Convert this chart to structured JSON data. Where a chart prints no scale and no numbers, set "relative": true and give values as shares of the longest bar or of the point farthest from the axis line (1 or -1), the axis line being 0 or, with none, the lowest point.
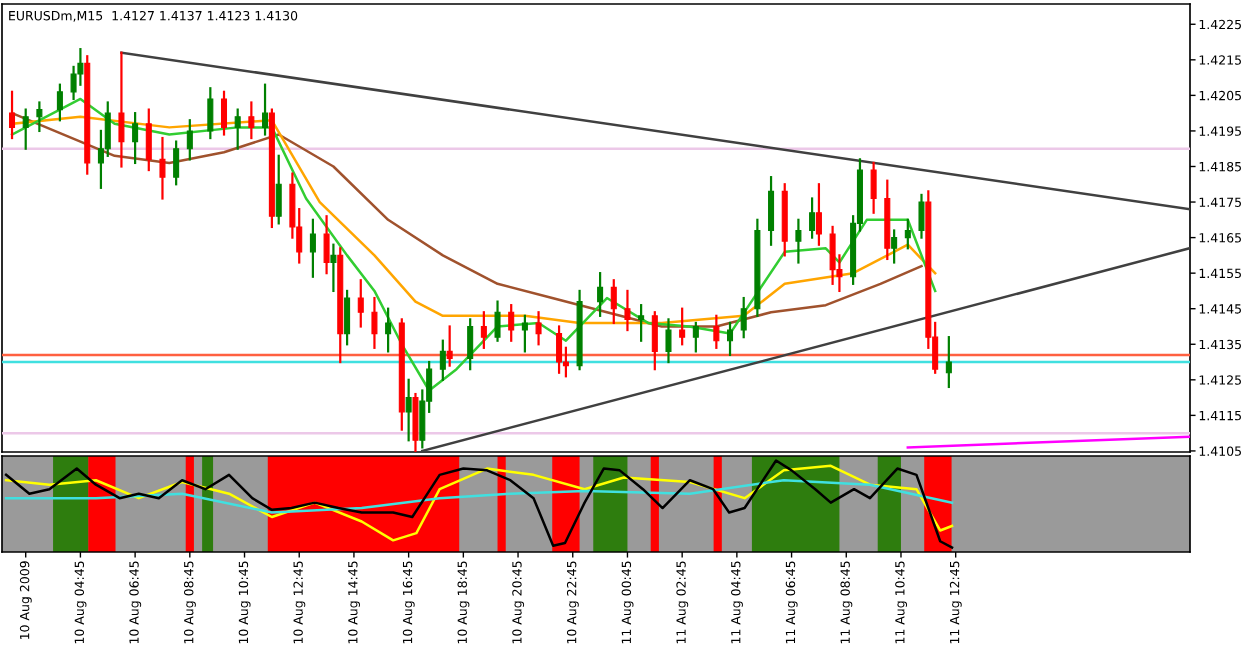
{
  "chart_data": [
    {
      "type": "candlestick",
      "title": "EURUSDm,M15  1.4127 1.4137 1.4123 1.4130",
      "x": [
        "2009-08-10T02:15",
        "2009-08-10T02:45",
        "2009-08-10T03:15",
        "2009-08-10T04:00",
        "2009-08-10T04:30",
        "2009-08-10T04:45",
        "2009-08-10T05:00",
        "2009-08-10T05:30",
        "2009-08-10T05:45",
        "2009-08-10T06:15",
        "2009-08-10T06:45",
        "2009-08-10T07:15",
        "2009-08-10T07:45",
        "2009-08-10T08:15",
        "2009-08-10T08:45",
        "2009-08-10T09:30",
        "2009-08-10T10:00",
        "2009-08-10T10:30",
        "2009-08-10T11:00",
        "2009-08-10T11:30",
        "2009-08-10T11:45",
        "2009-08-10T12:00",
        "2009-08-10T12:30",
        "2009-08-10T12:45",
        "2009-08-10T13:15",
        "2009-08-10T13:45",
        "2009-08-10T14:00",
        "2009-08-10T14:15",
        "2009-08-10T14:30",
        "2009-08-10T15:00",
        "2009-08-10T15:30",
        "2009-08-10T16:00",
        "2009-08-10T16:30",
        "2009-08-10T16:45",
        "2009-08-10T17:00",
        "2009-08-10T17:15",
        "2009-08-10T17:30",
        "2009-08-10T18:00",
        "2009-08-10T18:15",
        "2009-08-10T19:00",
        "2009-08-10T19:30",
        "2009-08-10T20:00",
        "2009-08-10T20:30",
        "2009-08-10T21:00",
        "2009-08-10T21:30",
        "2009-08-10T22:15",
        "2009-08-10T22:30",
        "2009-08-10T23:00",
        "2009-08-10T23:45",
        "2009-08-11T00:15",
        "2009-08-11T00:45",
        "2009-08-11T01:15",
        "2009-08-11T01:45",
        "2009-08-11T02:15",
        "2009-08-11T02:45",
        "2009-08-11T03:15",
        "2009-08-11T04:00",
        "2009-08-11T04:30",
        "2009-08-11T05:00",
        "2009-08-11T05:30",
        "2009-08-11T06:00",
        "2009-08-11T06:30",
        "2009-08-11T07:00",
        "2009-08-11T07:30",
        "2009-08-11T07:45",
        "2009-08-11T08:15",
        "2009-08-11T08:30",
        "2009-08-11T09:00",
        "2009-08-11T09:15",
        "2009-08-11T09:45",
        "2009-08-11T10:15",
        "2009-08-11T10:30",
        "2009-08-11T11:00",
        "2009-08-11T11:30",
        "2009-08-11T11:45",
        "2009-08-11T12:00",
        "2009-08-11T12:30"
      ],
      "ohlc": [
        [
          1.42,
          1.4206,
          1.4193,
          1.4196
        ],
        [
          1.4196,
          1.4201,
          1.419,
          1.4199
        ],
        [
          1.4199,
          1.4203,
          1.4195,
          1.4201
        ],
        [
          1.4201,
          1.4208,
          1.4198,
          1.4206
        ],
        [
          1.4206,
          1.4213,
          1.4204,
          1.4211
        ],
        [
          1.4211,
          1.4218,
          1.4208,
          1.4214
        ],
        [
          1.4214,
          1.4216,
          1.4183,
          1.4186
        ],
        [
          1.4186,
          1.4195,
          1.4179,
          1.419
        ],
        [
          1.419,
          1.4203,
          1.4188,
          1.42
        ],
        [
          1.42,
          1.4217,
          1.4185,
          1.4192
        ],
        [
          1.4192,
          1.42,
          1.4186,
          1.4197
        ],
        [
          1.4197,
          1.4201,
          1.4184,
          1.4187
        ],
        [
          1.4187,
          1.4193,
          1.4176,
          1.4182
        ],
        [
          1.4182,
          1.4192,
          1.418,
          1.419
        ],
        [
          1.419,
          1.4198,
          1.4187,
          1.4195
        ],
        [
          1.4195,
          1.4207,
          1.4193,
          1.4204
        ],
        [
          1.4204,
          1.4206,
          1.4194,
          1.4196
        ],
        [
          1.4196,
          1.4201,
          1.419,
          1.4199
        ],
        [
          1.4199,
          1.4203,
          1.4193,
          1.4196
        ],
        [
          1.4196,
          1.4208,
          1.4194,
          1.42
        ],
        [
          1.42,
          1.4201,
          1.4168,
          1.4171
        ],
        [
          1.4171,
          1.4188,
          1.4169,
          1.418
        ],
        [
          1.418,
          1.4183,
          1.4165,
          1.4168
        ],
        [
          1.4168,
          1.4173,
          1.4158,
          1.4161
        ],
        [
          1.4161,
          1.417,
          1.4154,
          1.4166
        ],
        [
          1.4166,
          1.4171,
          1.4155,
          1.4158
        ],
        [
          1.4158,
          1.4163,
          1.415,
          1.416
        ],
        [
          1.416,
          1.4162,
          1.413,
          1.4138
        ],
        [
          1.4138,
          1.415,
          1.4135,
          1.4148
        ],
        [
          1.4148,
          1.4153,
          1.414,
          1.4144
        ],
        [
          1.4144,
          1.4148,
          1.4134,
          1.4138
        ],
        [
          1.4138,
          1.4145,
          1.4133,
          1.4141
        ],
        [
          1.4141,
          1.4142,
          1.4111,
          1.4116
        ],
        [
          1.4116,
          1.4125,
          1.4108,
          1.412
        ],
        [
          1.412,
          1.4121,
          1.4105,
          1.4108
        ],
        [
          1.4108,
          1.4122,
          1.4106,
          1.4119
        ],
        [
          1.4119,
          1.413,
          1.4116,
          1.4128
        ],
        [
          1.4128,
          1.4136,
          1.4125,
          1.4133
        ],
        [
          1.4133,
          1.414,
          1.4129,
          1.4131
        ],
        [
          1.4131,
          1.4142,
          1.4128,
          1.414
        ],
        [
          1.414,
          1.4144,
          1.4134,
          1.4137
        ],
        [
          1.4137,
          1.4147,
          1.4136,
          1.4144
        ],
        [
          1.4144,
          1.4146,
          1.4136,
          1.4139
        ],
        [
          1.4139,
          1.4143,
          1.4133,
          1.4141
        ],
        [
          1.4141,
          1.4144,
          1.4135,
          1.4138
        ],
        [
          1.4138,
          1.414,
          1.4127,
          1.413
        ],
        [
          1.413,
          1.4134,
          1.4126,
          1.4129
        ],
        [
          1.4129,
          1.415,
          1.4128,
          1.4147
        ],
        [
          1.4147,
          1.4155,
          1.4143,
          1.4151
        ],
        [
          1.4151,
          1.4153,
          1.4141,
          1.4145
        ],
        [
          1.4145,
          1.415,
          1.4139,
          1.4142
        ],
        [
          1.4142,
          1.4146,
          1.4136,
          1.4143
        ],
        [
          1.4143,
          1.4144,
          1.4128,
          1.4133
        ],
        [
          1.4133,
          1.4142,
          1.413,
          1.4139
        ],
        [
          1.4139,
          1.4145,
          1.4135,
          1.4137
        ],
        [
          1.4137,
          1.4141,
          1.4133,
          1.414
        ],
        [
          1.414,
          1.4143,
          1.4134,
          1.4136
        ],
        [
          1.4136,
          1.4141,
          1.4132,
          1.4139
        ],
        [
          1.4139,
          1.4148,
          1.4137,
          1.4145
        ],
        [
          1.4145,
          1.417,
          1.4143,
          1.4167
        ],
        [
          1.4167,
          1.4182,
          1.4163,
          1.4178
        ],
        [
          1.4178,
          1.418,
          1.416,
          1.4164
        ],
        [
          1.4164,
          1.417,
          1.4158,
          1.4167
        ],
        [
          1.4167,
          1.4176,
          1.4165,
          1.4172
        ],
        [
          1.4172,
          1.418,
          1.4163,
          1.4166
        ],
        [
          1.4166,
          1.4168,
          1.4152,
          1.4156
        ],
        [
          1.4156,
          1.416,
          1.415,
          1.4154
        ],
        [
          1.4154,
          1.4171,
          1.4152,
          1.4169
        ],
        [
          1.4169,
          1.4187,
          1.4167,
          1.4184
        ],
        [
          1.4184,
          1.4186,
          1.4172,
          1.4176
        ],
        [
          1.4176,
          1.4181,
          1.4159,
          1.4162
        ],
        [
          1.4162,
          1.4167,
          1.4158,
          1.4165
        ],
        [
          1.4165,
          1.417,
          1.4162,
          1.4167
        ],
        [
          1.4167,
          1.4177,
          1.4165,
          1.4175
        ],
        [
          1.4175,
          1.4178,
          1.4134,
          1.4137
        ],
        [
          1.4137,
          1.4141,
          1.4127,
          1.4128
        ],
        [
          1.4127,
          1.4137,
          1.4123,
          1.413
        ]
      ],
      "colors": [
        "#ff0000",
        "#008000",
        "#008000",
        "#008000",
        "#008000",
        "#008000",
        "#ff0000",
        "#008000",
        "#008000",
        "#ff0000",
        "#008000",
        "#ff0000",
        "#ff0000",
        "#008000",
        "#008000",
        "#008000",
        "#ff0000",
        "#008000",
        "#ff0000",
        "#008000",
        "#ff0000",
        "#008000",
        "#ff0000",
        "#ff0000",
        "#008000",
        "#ff0000",
        "#008000",
        "#ff0000",
        "#008000",
        "#ff0000",
        "#ff0000",
        "#008000",
        "#ff0000",
        "#008000",
        "#ff0000",
        "#008000",
        "#008000",
        "#008000",
        "#ff0000",
        "#008000",
        "#ff0000",
        "#008000",
        "#ff0000",
        "#008000",
        "#ff0000",
        "#ff0000",
        "#ff0000",
        "#008000",
        "#008000",
        "#ff0000",
        "#ff0000",
        "#008000",
        "#ff0000",
        "#008000",
        "#ff0000",
        "#008000",
        "#ff0000",
        "#008000",
        "#008000",
        "#008000",
        "#008000",
        "#ff0000",
        "#008000",
        "#008000",
        "#ff0000",
        "#ff0000",
        "#ff0000",
        "#008000",
        "#008000",
        "#ff0000",
        "#ff0000",
        "#008000",
        "#008000",
        "#008000",
        "#ff0000",
        "#ff0000",
        "#008000"
      ],
      "series": [
        {
          "type": "line",
          "color": "#a0522d",
          "x": [
            "2009-08-10T02:15",
            "2009-08-10T06:00",
            "2009-08-10T08:00",
            "2009-08-10T10:00",
            "2009-08-10T12:00",
            "2009-08-10T14:00",
            "2009-08-10T16:00",
            "2009-08-10T18:00",
            "2009-08-10T20:00",
            "2009-08-10T22:00",
            "2009-08-11T00:00",
            "2009-08-11T02:00",
            "2009-08-11T04:00",
            "2009-08-11T06:00",
            "2009-08-11T08:00",
            "2009-08-11T10:00",
            "2009-08-11T11:30"
          ],
          "values": [
            1.42,
            1.4188,
            1.4186,
            1.4189,
            1.4194,
            1.4185,
            1.417,
            1.416,
            1.4152,
            1.4148,
            1.4144,
            1.414,
            1.414,
            1.4144,
            1.4146,
            1.4152,
            1.4157
          ]
        },
        {
          "type": "line",
          "color": "#ffa500",
          "x": [
            "2009-08-10T02:15",
            "2009-08-10T04:45",
            "2009-08-10T08:00",
            "2009-08-10T11:45",
            "2009-08-10T13:30",
            "2009-08-10T15:30",
            "2009-08-10T17:00",
            "2009-08-10T18:00",
            "2009-08-10T21:00",
            "2009-08-10T23:00",
            "2009-08-11T02:00",
            "2009-08-11T05:00",
            "2009-08-11T06:30",
            "2009-08-11T09:00",
            "2009-08-11T11:00",
            "2009-08-11T12:00"
          ],
          "values": [
            1.4197,
            1.4199,
            1.4196,
            1.4198,
            1.4175,
            1.416,
            1.4147,
            1.4143,
            1.4143,
            1.4141,
            1.4141,
            1.4143,
            1.4152,
            1.4155,
            1.4163,
            1.4155
          ]
        },
        {
          "type": "line",
          "color": "#32cd32",
          "x": [
            "2009-08-10T02:15",
            "2009-08-10T04:45",
            "2009-08-10T06:00",
            "2009-08-10T08:00",
            "2009-08-10T10:30",
            "2009-08-10T11:45",
            "2009-08-10T13:00",
            "2009-08-10T14:30",
            "2009-08-10T15:30",
            "2009-08-10T16:30",
            "2009-08-10T17:30",
            "2009-08-10T18:30",
            "2009-08-10T20:00",
            "2009-08-10T21:30",
            "2009-08-10T22:30",
            "2009-08-11T00:00",
            "2009-08-11T01:30",
            "2009-08-11T03:00",
            "2009-08-11T04:30",
            "2009-08-11T06:30",
            "2009-08-11T08:00",
            "2009-08-11T08:30",
            "2009-08-11T09:30",
            "2009-08-11T11:00",
            "2009-08-11T12:00"
          ],
          "values": [
            1.4194,
            1.4204,
            1.4197,
            1.4194,
            1.4196,
            1.4196,
            1.4176,
            1.416,
            1.415,
            1.4135,
            1.4122,
            1.4128,
            1.414,
            1.4141,
            1.4136,
            1.4148,
            1.4141,
            1.414,
            1.4138,
            1.4161,
            1.4162,
            1.4158,
            1.417,
            1.417,
            1.415
          ]
        },
        {
          "type": "line",
          "color": "#404040",
          "x": [
            "2009-08-10T06:15",
            "2009-08-11T21:18"
          ],
          "values": [
            1.4217,
            1.4173
          ]
        },
        {
          "type": "line",
          "color": "#404040",
          "x": [
            "2009-08-10T17:15",
            "2009-08-11T21:18"
          ],
          "values": [
            1.4105,
            1.4162
          ]
        },
        {
          "type": "line",
          "color": "#ff00ff",
          "x": [
            "2009-08-11T11:00",
            "2009-08-11T21:18"
          ],
          "values": [
            1.4106,
            1.4109
          ]
        }
      ],
      "ref_lines": [
        {
          "axis": "y",
          "value": 1.4132,
          "color": "#ff6040"
        },
        {
          "axis": "y",
          "value": 1.413,
          "color": "#40e0e0"
        },
        {
          "axis": "y",
          "value": 1.419,
          "color": "#ecc8e8"
        },
        {
          "axis": "y",
          "value": 1.411,
          "color": "#ecc8e8"
        }
      ],
      "xlim": [
        "2009-08-10T01:53",
        "2009-08-11T21:19"
      ],
      "ylim": [
        1.41047,
        1.42307
      ],
      "yticks": [
        1.4105,
        1.4115,
        1.4125,
        1.4135,
        1.4145,
        1.4155,
        1.4165,
        1.4175,
        1.4185,
        1.4195,
        1.4205,
        1.4215,
        1.4225
      ],
      "tick_labels": "y",
      "legend": false,
      "grid": false
    },
    {
      "type": "line",
      "relative": true,
      "xlim": [
        "2009-08-10T01:53",
        "2009-08-11T21:19"
      ],
      "xticks": [
        {
          "value": "2009-08-10T02:45",
          "label": "10 Aug 2009"
        },
        {
          "value": "2009-08-10T04:45",
          "label": "10 Aug 04:45"
        },
        {
          "value": "2009-08-10T06:45",
          "label": "10 Aug 06:45"
        },
        {
          "value": "2009-08-10T08:45",
          "label": "10 Aug 08:45"
        },
        {
          "value": "2009-08-10T10:45",
          "label": "10 Aug 10:45"
        },
        {
          "value": "2009-08-10T12:45",
          "label": "10 Aug 12:45"
        },
        {
          "value": "2009-08-10T14:45",
          "label": "10 Aug 14:45"
        },
        {
          "value": "2009-08-10T16:45",
          "label": "10 Aug 16:45"
        },
        {
          "value": "2009-08-10T18:45",
          "label": "10 Aug 18:45"
        },
        {
          "value": "2009-08-10T20:45",
          "label": "10 Aug 20:45"
        },
        {
          "value": "2009-08-10T22:45",
          "label": "10 Aug 22:45"
        },
        {
          "value": "2009-08-11T00:45",
          "label": "11 Aug 00:45"
        },
        {
          "value": "2009-08-11T02:45",
          "label": "11 Aug 02:45"
        },
        {
          "value": "2009-08-11T04:45",
          "label": "11 Aug 04:45"
        },
        {
          "value": "2009-08-11T06:45",
          "label": "11 Aug 06:45"
        },
        {
          "value": "2009-08-11T08:45",
          "label": "11 Aug 08:45"
        },
        {
          "value": "2009-08-11T10:45",
          "label": "11 Aug 10:45"
        },
        {
          "value": "2009-08-11T12:45",
          "label": "11 Aug 12:45"
        }
      ],
      "series": [
        {
          "color": "#ffff00",
          "x": [
            "2009-08-10T02:02",
            "2009-08-10T03:37",
            "2009-08-10T05:19",
            "2009-08-10T06:53",
            "2009-08-10T08:28",
            "2009-08-10T10:11",
            "2009-08-10T11:45",
            "2009-08-10T13:19",
            "2009-08-10T15:02",
            "2009-08-10T16:11",
            "2009-08-10T17:02",
            "2009-08-10T17:53",
            "2009-08-10T19:37",
            "2009-08-10T21:19",
            "2009-08-10T23:11",
            "2009-08-11T00:37",
            "2009-08-11T03:02",
            "2009-08-11T05:02",
            "2009-08-11T06:28",
            "2009-08-11T08:11",
            "2009-08-11T09:37",
            "2009-08-11T11:19",
            "2009-08-11T12:11",
            "2009-08-11T12:37"
          ],
          "values": [
            0.78,
            0.73,
            0.78,
            0.58,
            0.76,
            0.63,
            0.37,
            0.53,
            0.32,
            0.11,
            0.19,
            0.68,
            0.91,
            0.84,
            0.68,
            0.81,
            0.76,
            0.58,
            0.89,
            0.94,
            0.73,
            0.68,
            0.22,
            0.27
          ]
        },
        {
          "color": "#40e0e0",
          "x": [
            "2009-08-10T02:02",
            "2009-08-10T05:19",
            "2009-08-10T08:28",
            "2009-08-10T11:45",
            "2009-08-10T15:02",
            "2009-08-10T17:53",
            "2009-08-10T20:28",
            "2009-08-10T23:11",
            "2009-08-11T03:02",
            "2009-08-11T06:28",
            "2009-08-11T09:37",
            "2009-08-11T12:37"
          ],
          "values": [
            0.58,
            0.58,
            0.63,
            0.42,
            0.47,
            0.58,
            0.63,
            0.66,
            0.63,
            0.78,
            0.73,
            0.53
          ]
        },
        {
          "color": "#000000",
          "x": [
            "2009-08-10T02:02",
            "2009-08-10T02:53",
            "2009-08-10T03:37",
            "2009-08-10T04:37",
            "2009-08-10T05:19",
            "2009-08-10T06:11",
            "2009-08-10T06:53",
            "2009-08-10T07:37",
            "2009-08-10T08:28",
            "2009-08-10T09:19",
            "2009-08-10T10:11",
            "2009-08-10T11:02",
            "2009-08-10T11:45",
            "2009-08-10T12:28",
            "2009-08-10T13:19",
            "2009-08-10T14:11",
            "2009-08-10T15:02",
            "2009-08-10T16:11",
            "2009-08-10T16:53",
            "2009-08-10T17:53",
            "2009-08-10T18:45",
            "2009-08-10T19:37",
            "2009-08-10T20:28",
            "2009-08-10T21:19",
            "2009-08-10T22:02",
            "2009-08-10T22:28",
            "2009-08-10T23:11",
            "2009-08-10T23:53",
            "2009-08-11T00:28",
            "2009-08-11T01:19",
            "2009-08-11T02:02",
            "2009-08-11T03:02",
            "2009-08-11T03:53",
            "2009-08-11T04:28",
            "2009-08-11T05:02",
            "2009-08-11T06:11",
            "2009-08-11T06:45",
            "2009-08-11T07:37",
            "2009-08-11T08:11",
            "2009-08-11T09:02",
            "2009-08-11T09:37",
            "2009-08-11T10:37",
            "2009-08-11T11:19",
            "2009-08-11T12:11",
            "2009-08-11T12:37"
          ],
          "values": [
            0.84,
            0.63,
            0.68,
            0.91,
            0.73,
            0.58,
            0.63,
            0.58,
            0.78,
            0.68,
            0.84,
            0.58,
            0.45,
            0.47,
            0.53,
            0.47,
            0.42,
            0.42,
            0.37,
            0.84,
            0.91,
            0.89,
            0.78,
            0.58,
            0.05,
            0.08,
            0.53,
            0.91,
            0.89,
            0.68,
            0.47,
            0.78,
            0.68,
            0.42,
            0.47,
            1.0,
            0.89,
            0.68,
            0.53,
            0.68,
            0.58,
            0.91,
            0.84,
            0.1,
            0.03
          ]
        }
      ],
      "bands": [
        {
          "axis": "x",
          "from": "2009-08-10T05:02",
          "to": "2009-08-10T06:02",
          "color": "#ff0000"
        },
        {
          "axis": "x",
          "from": "2009-08-10T08:36",
          "to": "2009-08-10T08:54",
          "color": "#ff0000"
        },
        {
          "axis": "x",
          "from": "2009-08-10T11:36",
          "to": "2009-08-10T18:36",
          "color": "#ff0000"
        },
        {
          "axis": "x",
          "from": "2009-08-10T20:00",
          "to": "2009-08-10T20:18",
          "color": "#ff0000"
        },
        {
          "axis": "x",
          "from": "2009-08-10T22:00",
          "to": "2009-08-10T23:00",
          "color": "#ff0000"
        },
        {
          "axis": "x",
          "from": "2009-08-11T01:36",
          "to": "2009-08-11T01:54",
          "color": "#ff0000"
        },
        {
          "axis": "x",
          "from": "2009-08-11T03:54",
          "to": "2009-08-11T04:12",
          "color": "#ff0000"
        },
        {
          "axis": "x",
          "from": "2009-08-11T11:36",
          "to": "2009-08-11T12:36",
          "color": "#ff0000"
        },
        {
          "axis": "x",
          "from": "2009-08-10T03:45",
          "to": "2009-08-10T05:02",
          "color": "#2e7d0e"
        },
        {
          "axis": "x",
          "from": "2009-08-10T09:12",
          "to": "2009-08-10T09:36",
          "color": "#2e7d0e"
        },
        {
          "axis": "x",
          "from": "2009-08-10T23:30",
          "to": "2009-08-11T00:45",
          "color": "#2e7d0e"
        },
        {
          "axis": "x",
          "from": "2009-08-11T05:18",
          "to": "2009-08-11T08:30",
          "color": "#2e7d0e"
        },
        {
          "axis": "x",
          "from": "2009-08-11T09:54",
          "to": "2009-08-11T10:45",
          "color": "#2e7d0e"
        }
      ],
      "tick_labels": "x",
      "legend": false,
      "grid": false
    }
  ]
}
